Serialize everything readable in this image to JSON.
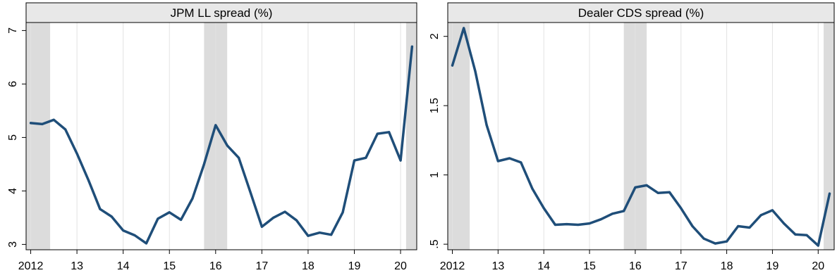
{
  "chart_data": [
    {
      "type": "line",
      "title": "JPM LL spread (%)",
      "xlabel": "",
      "ylabel": "",
      "xlim": [
        2011.9,
        2020.35
      ],
      "ylim": [
        2.9,
        7.15
      ],
      "xticks": [
        2012,
        2013,
        2014,
        2015,
        2016,
        2017,
        2018,
        2019,
        2020
      ],
      "xtick_labels": [
        "2012",
        "13",
        "14",
        "15",
        "16",
        "17",
        "18",
        "19",
        "20"
      ],
      "yticks": [
        3,
        4,
        5,
        6,
        7
      ],
      "ytick_labels": [
        "3",
        "4",
        "5",
        "6",
        "7"
      ],
      "grid": "vertical",
      "shaded_periods": [
        [
          2011.9,
          2012.42
        ],
        [
          2015.75,
          2016.25
        ],
        [
          2020.12,
          2020.35
        ]
      ],
      "series": [
        {
          "color": "#1f4e79",
          "x": [
            2012.0,
            2012.25,
            2012.5,
            2012.75,
            2013.0,
            2013.25,
            2013.5,
            2013.75,
            2014.0,
            2014.25,
            2014.5,
            2014.75,
            2015.0,
            2015.25,
            2015.5,
            2015.75,
            2016.0,
            2016.25,
            2016.5,
            2016.75,
            2017.0,
            2017.25,
            2017.5,
            2017.75,
            2018.0,
            2018.25,
            2018.5,
            2018.75,
            2019.0,
            2019.25,
            2019.5,
            2019.75,
            2020.0,
            2020.25
          ],
          "y": [
            5.27,
            5.25,
            5.33,
            5.15,
            4.7,
            4.2,
            3.66,
            3.52,
            3.26,
            3.17,
            3.02,
            3.48,
            3.6,
            3.46,
            3.86,
            4.5,
            5.23,
            4.85,
            4.62,
            3.98,
            3.33,
            3.5,
            3.61,
            3.45,
            3.16,
            3.22,
            3.18,
            3.6,
            4.57,
            4.62,
            5.07,
            5.1,
            4.57,
            6.7
          ]
        }
      ]
    },
    {
      "type": "line",
      "title": "Dealer CDS spread (%)",
      "xlabel": "",
      "ylabel": "",
      "xlim": [
        2011.9,
        2020.35
      ],
      "ylim": [
        0.46,
        2.1
      ],
      "xticks": [
        2012,
        2013,
        2014,
        2015,
        2016,
        2017,
        2018,
        2019,
        2020
      ],
      "xtick_labels": [
        "2012",
        "13",
        "14",
        "15",
        "16",
        "17",
        "18",
        "19",
        "20"
      ],
      "yticks": [
        0.5,
        1.0,
        1.5,
        2.0
      ],
      "ytick_labels": [
        ".5",
        "1",
        "1.5",
        "2"
      ],
      "grid": "vertical",
      "shaded_periods": [
        [
          2011.9,
          2012.38
        ],
        [
          2015.75,
          2016.25
        ],
        [
          2020.12,
          2020.35
        ]
      ],
      "series": [
        {
          "color": "#1f4e79",
          "x": [
            2012.0,
            2012.25,
            2012.5,
            2012.75,
            2013.0,
            2013.25,
            2013.5,
            2013.75,
            2014.0,
            2014.25,
            2014.5,
            2014.75,
            2015.0,
            2015.25,
            2015.5,
            2015.75,
            2016.0,
            2016.25,
            2016.5,
            2016.75,
            2017.0,
            2017.25,
            2017.5,
            2017.75,
            2018.0,
            2018.25,
            2018.5,
            2018.75,
            2019.0,
            2019.25,
            2019.5,
            2019.75,
            2020.0,
            2020.25
          ],
          "y": [
            1.79,
            2.06,
            1.75,
            1.36,
            1.1,
            1.12,
            1.09,
            0.9,
            0.76,
            0.64,
            0.645,
            0.64,
            0.65,
            0.68,
            0.72,
            0.74,
            0.91,
            0.925,
            0.87,
            0.875,
            0.76,
            0.63,
            0.54,
            0.505,
            0.52,
            0.63,
            0.62,
            0.71,
            0.745,
            0.65,
            0.57,
            0.565,
            0.49,
            0.865
          ]
        }
      ]
    }
  ]
}
